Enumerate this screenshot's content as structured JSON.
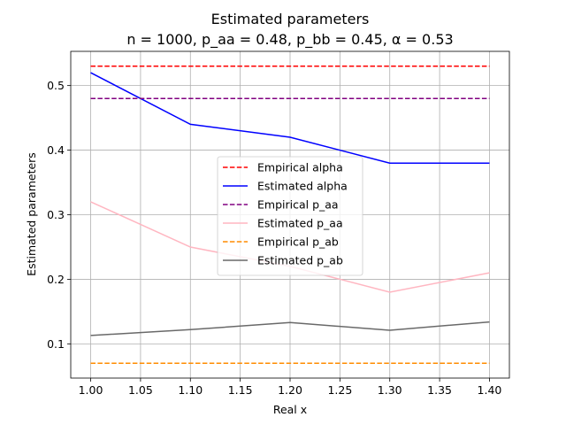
{
  "chart_data": {
    "type": "line",
    "title": "Estimated parameters",
    "subtitle": "n = 1000, p_aa = 0.48, p_bb = 0.45, α = 0.53",
    "xlabel": "Real x",
    "ylabel": "Estimated parameters",
    "xlim": [
      0.98,
      1.42
    ],
    "ylim": [
      0.047,
      0.553
    ],
    "grid": true,
    "legend_position": "center",
    "xticks": [
      1.0,
      1.05,
      1.1,
      1.15,
      1.2,
      1.25,
      1.3,
      1.35,
      1.4
    ],
    "xtick_labels": [
      "1.00",
      "1.05",
      "1.10",
      "1.15",
      "1.20",
      "1.25",
      "1.30",
      "1.35",
      "1.40"
    ],
    "yticks": [
      0.1,
      0.2,
      0.3,
      0.4,
      0.5
    ],
    "ytick_labels": [
      "0.1",
      "0.2",
      "0.3",
      "0.4",
      "0.5"
    ],
    "x": [
      1.0,
      1.1,
      1.2,
      1.3,
      1.4
    ],
    "series": [
      {
        "name": "Empirical alpha",
        "color": "#ff0000",
        "dashed": true,
        "values": [
          0.53,
          0.53,
          0.53,
          0.53,
          0.53
        ]
      },
      {
        "name": "Estimated alpha",
        "color": "#0000ff",
        "dashed": false,
        "values": [
          0.52,
          0.44,
          0.42,
          0.38,
          0.38
        ]
      },
      {
        "name": "Empirical p_aa",
        "color": "#800080",
        "dashed": true,
        "values": [
          0.48,
          0.48,
          0.48,
          0.48,
          0.48
        ]
      },
      {
        "name": "Estimated p_aa",
        "color": "#ffb6c1",
        "dashed": false,
        "values": [
          0.32,
          0.25,
          0.22,
          0.18,
          0.21
        ]
      },
      {
        "name": "Empirical p_ab",
        "color": "#ff8c00",
        "dashed": true,
        "values": [
          0.07,
          0.07,
          0.07,
          0.07,
          0.07
        ]
      },
      {
        "name": "Estimated p_ab",
        "color": "#696969",
        "dashed": false,
        "values": [
          0.113,
          0.122,
          0.133,
          0.121,
          0.134
        ]
      }
    ]
  }
}
